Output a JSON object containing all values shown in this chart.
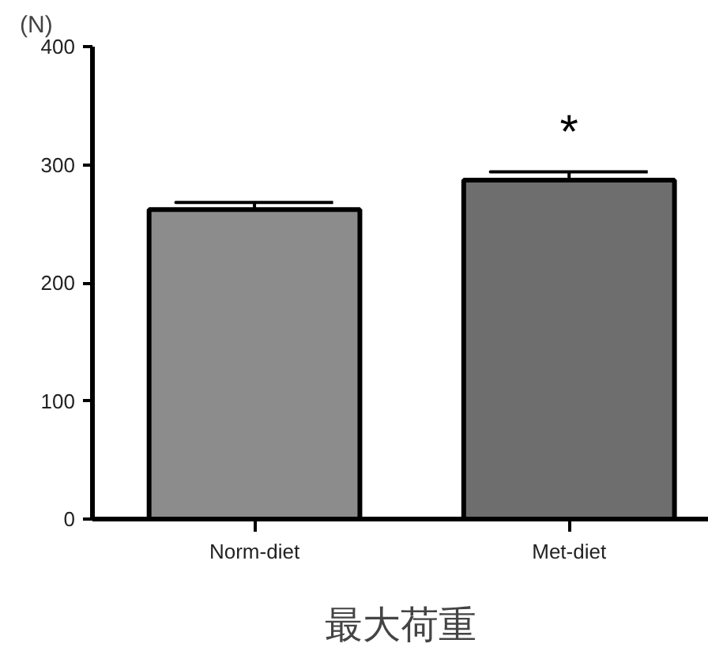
{
  "chart_data": {
    "type": "bar",
    "ylabel": "(N)",
    "xlabel": "最大荷重",
    "categories": [
      "Norm-diet",
      "Met-diet"
    ],
    "values": [
      262,
      287
    ],
    "errors": [
      6,
      7
    ],
    "colors": [
      "#8c8c8c",
      "#6e6e6e"
    ],
    "ylim": [
      0,
      400
    ],
    "yticks": [
      0,
      100,
      200,
      300,
      400
    ],
    "grid": false,
    "annotations": [
      {
        "text": "*",
        "x": "Met-diet",
        "y": 294
      }
    ]
  }
}
